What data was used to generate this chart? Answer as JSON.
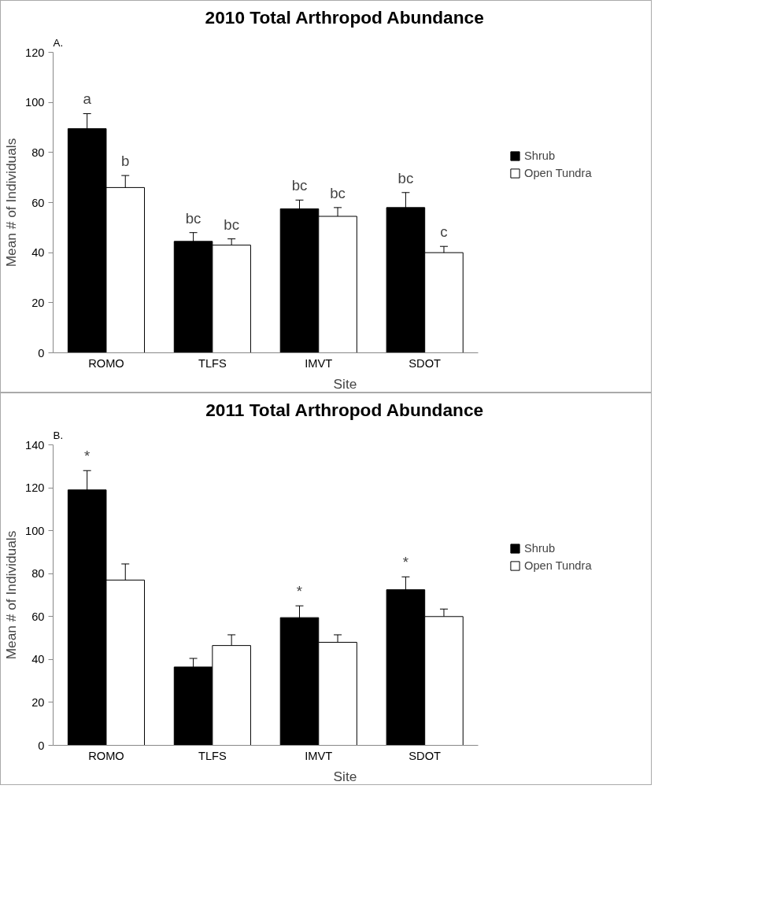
{
  "chart_data": [
    {
      "type": "bar",
      "title": "2010 Total Arthropod Abundance",
      "xlabel": "Site",
      "ylabel": "Mean # of Individuals",
      "categories": [
        "ROMO",
        "TLFS",
        "IMVT",
        "SDOT"
      ],
      "series": [
        {
          "name": "Shrub",
          "color": "#000000",
          "values": [
            89.5,
            44.5,
            57.5,
            58
          ],
          "errors": [
            6,
            3.5,
            3.5,
            6
          ]
        },
        {
          "name": "Open Tundra",
          "color": "#ffffff",
          "values": [
            66,
            43,
            54.5,
            40
          ],
          "errors": [
            4.8,
            2.5,
            3.5,
            2.5
          ]
        }
      ],
      "ylim": [
        0,
        120
      ],
      "yticks": [
        0,
        20,
        40,
        60,
        80,
        100,
        120
      ],
      "grid": false,
      "legend": "right",
      "annotations": [
        "A.",
        {
          "text": "a",
          "x": "ROMO",
          "y": 89.5
        },
        {
          "text": "b",
          "x": "ROMO",
          "y": 66
        },
        {
          "text": "bc",
          "x": "TLFS",
          "y": 44.5
        },
        {
          "text": "bc",
          "x": "TLFS",
          "y": 43
        },
        {
          "text": "bc",
          "x": "IMVT",
          "y": 57.5
        },
        {
          "text": "bc",
          "x": "IMVT",
          "y": 54.5
        },
        {
          "text": "bc",
          "x": "SDOT",
          "y": 58
        },
        {
          "text": "c",
          "x": "SDOT",
          "y": 40
        }
      ]
    },
    {
      "type": "bar",
      "title": "2011 Total Arthropod Abundance",
      "xlabel": "Site",
      "ylabel": "Mean # of Individuals",
      "categories": [
        "ROMO",
        "TLFS",
        "IMVT",
        "SDOT"
      ],
      "series": [
        {
          "name": "Shrub",
          "color": "#000000",
          "values": [
            119,
            36.5,
            59.5,
            72.5
          ],
          "errors": [
            9,
            4,
            5.5,
            6
          ]
        },
        {
          "name": "Open Tundra",
          "color": "#ffffff",
          "values": [
            77,
            46.5,
            48,
            60
          ],
          "errors": [
            7.5,
            5,
            3.5,
            3.5
          ]
        }
      ],
      "ylim": [
        0,
        140
      ],
      "yticks": [
        0,
        20,
        40,
        60,
        80,
        100,
        120,
        140
      ],
      "grid": false,
      "legend": "right",
      "annotations": [
        "B.",
        {
          "text": "*",
          "x": "ROMO",
          "y": 119
        },
        {
          "text": "*",
          "x": "IMVT",
          "y": 59.5
        },
        {
          "text": "*",
          "x": "SDOT",
          "y": 72.5
        }
      ]
    }
  ]
}
